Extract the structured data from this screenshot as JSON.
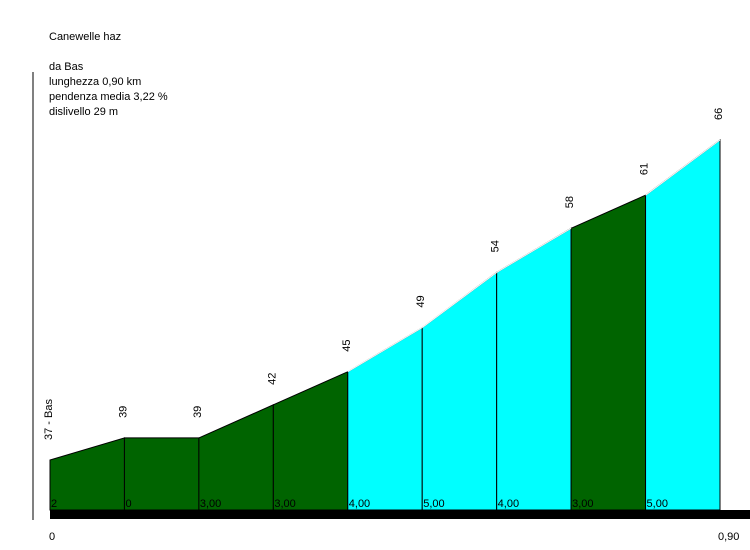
{
  "info": {
    "title": "Canewelle haz",
    "start": "da Bas",
    "length": "lunghezza 0,90 km",
    "avg_gradient": "pendenza media 3,22 %",
    "elevation_gain": "dislivello 29 m"
  },
  "colors": {
    "dark": "#006400",
    "light": "#00FFFF",
    "outline": "#000000",
    "base_bar": "#000000"
  },
  "chart_data": {
    "type": "area",
    "title": "Canewelle haz",
    "x_start_label": "0",
    "x_end_label": "0,90",
    "x_km": [
      0,
      0.1,
      0.2,
      0.3,
      0.4,
      0.5,
      0.6,
      0.7,
      0.8,
      0.9
    ],
    "elevation_m": [
      37,
      39,
      39,
      42,
      45,
      49,
      54,
      58,
      61,
      66
    ],
    "elevation_labels": [
      "37 - Bas",
      "39",
      "39",
      "42",
      "45",
      "49",
      "54",
      "58",
      "61",
      "66"
    ],
    "segments": [
      {
        "gradient_label": "2",
        "color": "dark"
      },
      {
        "gradient_label": "0",
        "color": "dark"
      },
      {
        "gradient_label": "3,00",
        "color": "dark"
      },
      {
        "gradient_label": "3,00",
        "color": "dark"
      },
      {
        "gradient_label": "4,00",
        "color": "light"
      },
      {
        "gradient_label": "5,00",
        "color": "light"
      },
      {
        "gradient_label": "4,00",
        "color": "light"
      },
      {
        "gradient_label": "3,00",
        "color": "dark"
      },
      {
        "gradient_label": "5,00",
        "color": "light"
      }
    ]
  }
}
